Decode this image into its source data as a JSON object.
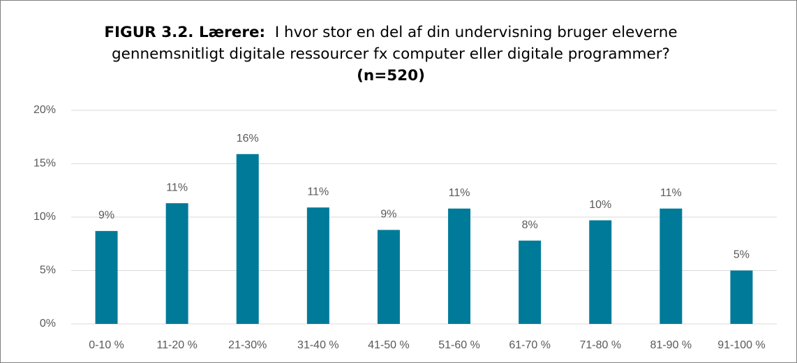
{
  "chart_data": {
    "type": "bar",
    "title": [
      "FIGUR 3.2. Lærere:",
      "I hvor stor en del af din undervisning bruger eleverne gennemsnitligt digitale ressourcer fx computer eller digitale programmer?",
      "(n=520)"
    ],
    "categories": [
      "0-10 %",
      "11-20 %",
      "21-30%",
      "31-40 %",
      "41-50 %",
      "51-60 %",
      "61-70 %",
      "71-80 %",
      "81-90 %",
      "91-100 %"
    ],
    "values": [
      8.7,
      11.3,
      15.9,
      10.9,
      8.8,
      10.8,
      7.8,
      9.7,
      10.8,
      5.0
    ],
    "value_labels": [
      "9%",
      "11%",
      "16%",
      "11%",
      "9%",
      "11%",
      "8%",
      "10%",
      "11%",
      "5%"
    ],
    "color": "#007a99",
    "ylim": [
      0,
      20
    ],
    "yticks": [
      {
        "value": 0,
        "label": "0%"
      },
      {
        "value": 5,
        "label": "5%"
      },
      {
        "value": 10,
        "label": "10%"
      },
      {
        "value": 15,
        "label": "15%"
      },
      {
        "value": 20,
        "label": "20%"
      }
    ],
    "grid": true
  }
}
